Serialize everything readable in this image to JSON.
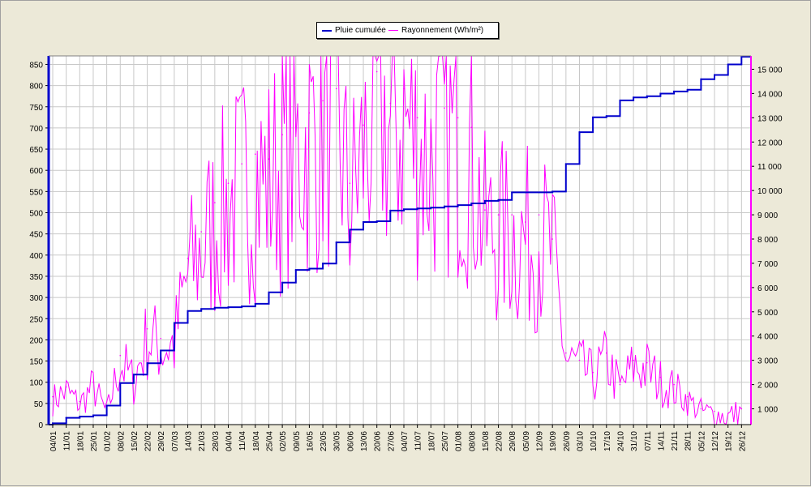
{
  "chart_data": {
    "type": "line",
    "x": [
      "04/01",
      "11/01",
      "18/01",
      "25/01",
      "01/02",
      "08/02",
      "15/02",
      "22/02",
      "29/02",
      "07/03",
      "14/03",
      "21/03",
      "28/03",
      "04/04",
      "11/04",
      "18/04",
      "25/04",
      "02/05",
      "09/05",
      "16/05",
      "23/05",
      "30/05",
      "06/06",
      "13/06",
      "20/06",
      "27/06",
      "04/07",
      "11/07",
      "18/07",
      "25/07",
      "01/08",
      "08/08",
      "15/08",
      "22/08",
      "29/08",
      "05/09",
      "12/09",
      "19/09",
      "26/09",
      "03/10",
      "10/10",
      "17/10",
      "24/10",
      "31/10",
      "07/11",
      "14/11",
      "21/11",
      "28/11",
      "05/12",
      "12/12",
      "19/12",
      "26/12"
    ],
    "xlabel_ticks": [
      "04/01",
      "11/01",
      "18/01",
      "25/01",
      "01/02",
      "08/02",
      "15/02",
      "22/02",
      "29/02",
      "07/03",
      "14/03",
      "21/03",
      "28/03",
      "04/04",
      "11/04",
      "18/04",
      "25/04",
      "02/05",
      "09/05",
      "16/05",
      "23/05",
      "30/05",
      "06/06",
      "13/06",
      "20/06",
      "27/06",
      "04/07",
      "11/07",
      "18/07",
      "25/07",
      "01/08",
      "08/08",
      "15/08",
      "22/08",
      "29/08",
      "05/09",
      "12/09",
      "19/09",
      "26/09",
      "03/10",
      "10/10",
      "17/10",
      "24/10",
      "31/10",
      "07/11",
      "14/11",
      "21/11",
      "28/11",
      "05/12",
      "12/12",
      "19/12",
      "26/12"
    ],
    "y_left_ticks": [
      "0",
      "50",
      "100",
      "150",
      "200",
      "250",
      "300",
      "350",
      "400",
      "450",
      "500",
      "550",
      "600",
      "650",
      "700",
      "750",
      "800",
      "850"
    ],
    "y_right_ticks": [
      "1 000",
      "2 000",
      "3 000",
      "4 000",
      "5 000",
      "6 000",
      "7 000",
      "8 000",
      "9 000",
      "10 000",
      "11 000",
      "12 000",
      "13 000",
      "14 000",
      "15 000"
    ],
    "ylim_left": [
      0,
      870
    ],
    "ylim_right": [
      350,
      15550
    ],
    "grid": true,
    "legend_position": "top-center",
    "series": [
      {
        "name": "Pluie cumulée",
        "axis": "left",
        "color": "#0000cc",
        "values": [
          3,
          16,
          19,
          22,
          45,
          98,
          118,
          145,
          175,
          240,
          268,
          273,
          276,
          277,
          279,
          285,
          312,
          335,
          365,
          368,
          380,
          430,
          460,
          478,
          480,
          505,
          508,
          510,
          512,
          515,
          518,
          522,
          528,
          530,
          548,
          548,
          548,
          550,
          615,
          690,
          725,
          728,
          765,
          772,
          775,
          781,
          786,
          790,
          815,
          825,
          850,
          868
        ]
      },
      {
        "name": "Rayonnement (Wh/m²)",
        "axis": "right",
        "color": "#ff00ff",
        "values": [
          1500,
          1900,
          1300,
          2100,
          900,
          3200,
          2300,
          4300,
          3900,
          4000,
          7200,
          8300,
          9500,
          10300,
          11100,
          11500,
          11300,
          12300,
          12600,
          13200,
          13700,
          14200,
          10300,
          12700,
          14900,
          13600,
          14200,
          13000,
          12300,
          13400,
          13000,
          12600,
          9200,
          9000,
          9000,
          8700,
          9000,
          8000,
          3300,
          3000,
          2500,
          3300,
          2000,
          3000,
          2900,
          2300,
          2000,
          1500,
          1000,
          900,
          800,
          1000
        ]
      }
    ]
  }
}
